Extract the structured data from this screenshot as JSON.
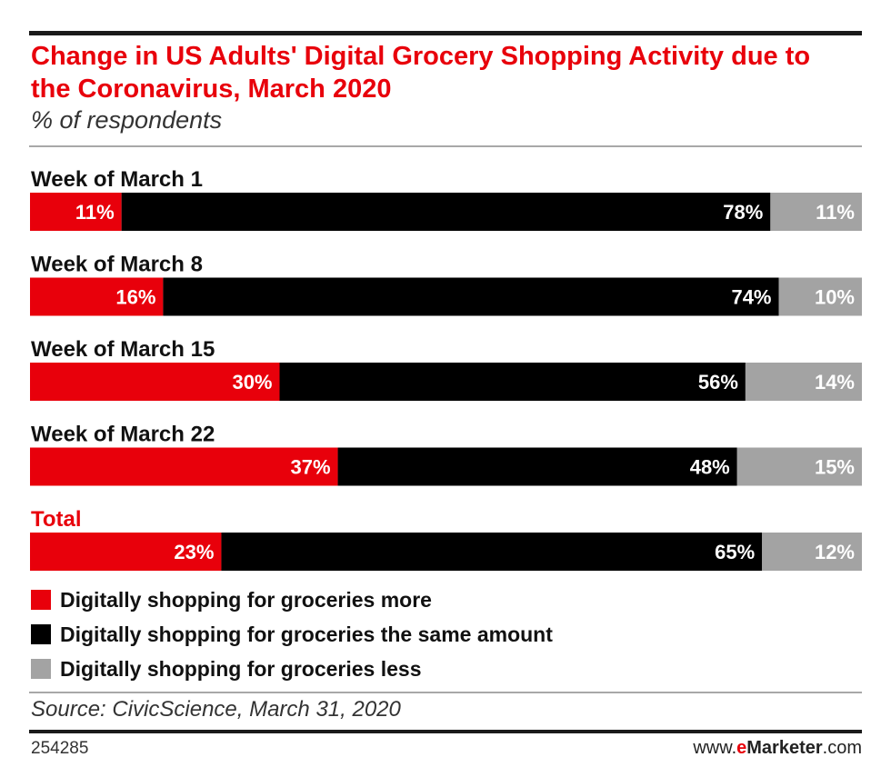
{
  "chart_data": {
    "type": "bar",
    "orientation": "horizontal",
    "stacked": true,
    "title": "Change in US Adults' Digital Grocery Shopping Activity due to the Coronavirus, March 2020",
    "subtitle": "% of respondents",
    "categories": [
      "Week of March 1",
      "Week of March 8",
      "Week of March 15",
      "Week of March 22",
      "Total"
    ],
    "category_colors": [
      "#111111",
      "#111111",
      "#111111",
      "#111111",
      "#e8000b"
    ],
    "series": [
      {
        "name": "Digitally shopping for groceries more",
        "color": "#e8000b",
        "values": [
          11,
          16,
          30,
          37,
          23
        ]
      },
      {
        "name": "Digitally shopping for groceries the same amount",
        "color": "#000000",
        "values": [
          78,
          74,
          56,
          48,
          65
        ]
      },
      {
        "name": "Digitally shopping for groceries less",
        "color": "#a3a3a3",
        "values": [
          11,
          10,
          14,
          15,
          12
        ]
      }
    ],
    "value_suffix": "%",
    "xlim": [
      0,
      100
    ]
  },
  "source": "Source: CivicScience, March 31, 2020",
  "footer": {
    "id": "254285",
    "brand_prefix": "www.",
    "brand_e": "e",
    "brand_name": "Marketer",
    "brand_suffix": ".com"
  }
}
